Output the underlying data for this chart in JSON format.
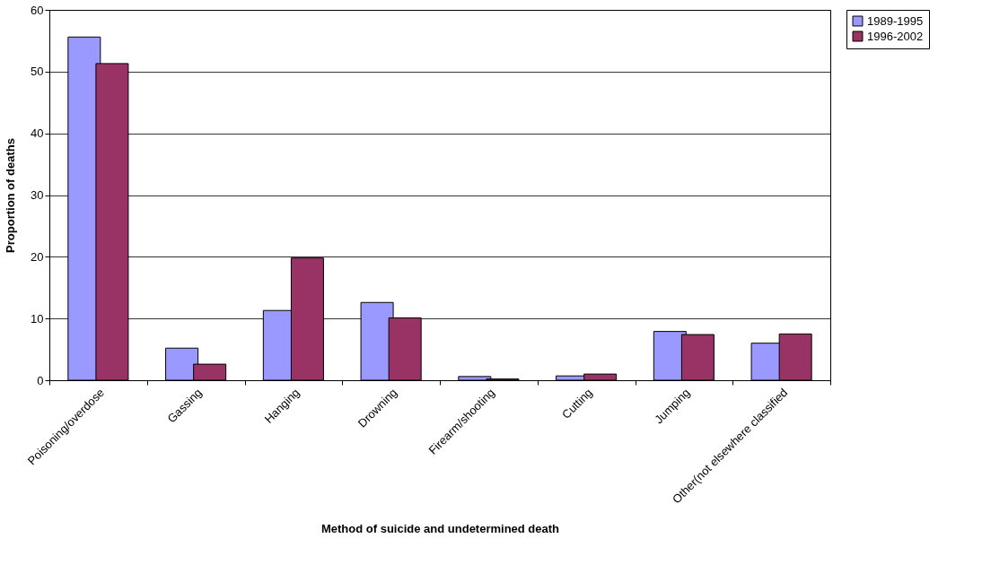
{
  "chart_data": {
    "type": "bar",
    "xlabel": "Method of suicide and undetermined death",
    "ylabel": "Proportion of deaths",
    "categories": [
      "Poisoning/overdose",
      "Gassing",
      "Hanging",
      "Drowning",
      "Firearm/shooting",
      "Cutting",
      "Jumping",
      "Other(not elsewhere classified"
    ],
    "series": [
      {
        "name": "1989-1995",
        "color": "#9999ff",
        "values": [
          55.6,
          5.2,
          11.3,
          12.6,
          0.6,
          0.7,
          7.9,
          6.0
        ]
      },
      {
        "name": "1996-2002",
        "color": "#993366",
        "values": [
          51.3,
          2.6,
          19.8,
          10.1,
          0.2,
          1.0,
          7.4,
          7.5
        ]
      }
    ],
    "ylim": [
      0,
      60
    ],
    "yticks": [
      0,
      10,
      20,
      30,
      40,
      50,
      60
    ],
    "grid": "y",
    "legend": "right"
  }
}
